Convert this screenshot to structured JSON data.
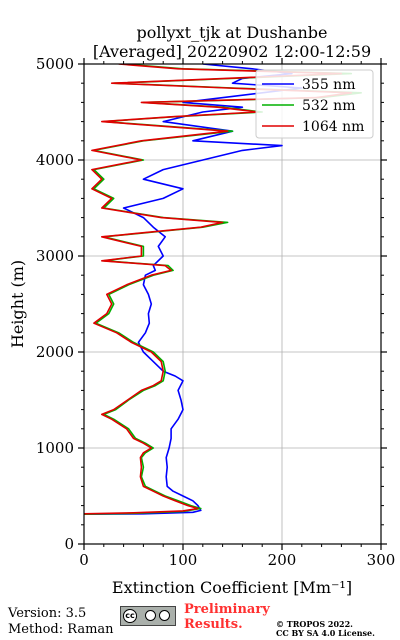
{
  "chart_data": {
    "type": "line",
    "title_line1": "pollyxt_tjk at Dushanbe",
    "title_line2": "[Averaged] 20220902 12:00-12:59",
    "xlabel": "Extinction Coefficient [Mm⁻¹]",
    "ylabel": "Height (m)",
    "xlim": [
      0,
      300
    ],
    "ylim": [
      0,
      5000
    ],
    "xticks": [
      "0",
      "100",
      "200",
      "300"
    ],
    "yticks": [
      "0",
      "1000",
      "2000",
      "3000",
      "4000",
      "5000"
    ],
    "grid": true,
    "legend_position": "top-right",
    "series": [
      {
        "name": "355 nm",
        "color": "#0000ff",
        "points": [
          [
            0,
            310
          ],
          [
            60,
            315
          ],
          [
            110,
            330
          ],
          [
            118,
            350
          ],
          [
            115,
            400
          ],
          [
            110,
            450
          ],
          [
            100,
            500
          ],
          [
            90,
            550
          ],
          [
            84,
            600
          ],
          [
            83,
            700
          ],
          [
            84,
            800
          ],
          [
            83,
            900
          ],
          [
            86,
            1000
          ],
          [
            88,
            1100
          ],
          [
            88,
            1200
          ],
          [
            95,
            1300
          ],
          [
            100,
            1400
          ],
          [
            98,
            1500
          ],
          [
            95,
            1600
          ],
          [
            100,
            1700
          ],
          [
            92,
            1750
          ],
          [
            80,
            1800
          ],
          [
            70,
            1900
          ],
          [
            60,
            2000
          ],
          [
            55,
            2100
          ],
          [
            62,
            2200
          ],
          [
            66,
            2300
          ],
          [
            65,
            2400
          ],
          [
            68,
            2500
          ],
          [
            65,
            2600
          ],
          [
            60,
            2700
          ],
          [
            62,
            2800
          ],
          [
            72,
            2850
          ],
          [
            70,
            2900
          ],
          [
            80,
            3000
          ],
          [
            75,
            3100
          ],
          [
            82,
            3200
          ],
          [
            70,
            3300
          ],
          [
            60,
            3400
          ],
          [
            40,
            3500
          ],
          [
            80,
            3600
          ],
          [
            100,
            3700
          ],
          [
            60,
            3800
          ],
          [
            80,
            3900
          ],
          [
            120,
            4000
          ],
          [
            160,
            4100
          ],
          [
            200,
            4150
          ],
          [
            110,
            4200
          ],
          [
            150,
            4300
          ],
          [
            80,
            4400
          ],
          [
            120,
            4500
          ],
          [
            160,
            4550
          ],
          [
            100,
            4600
          ],
          [
            180,
            4700
          ],
          [
            220,
            4750
          ],
          [
            150,
            4800
          ],
          [
            160,
            4850
          ],
          [
            210,
            4900
          ],
          [
            170,
            4950
          ],
          [
            120,
            5000
          ]
        ]
      },
      {
        "name": "532 nm",
        "color": "#00b000",
        "points": [
          [
            0,
            310
          ],
          [
            50,
            320
          ],
          [
            100,
            340
          ],
          [
            118,
            370
          ],
          [
            108,
            400
          ],
          [
            95,
            450
          ],
          [
            82,
            500
          ],
          [
            72,
            550
          ],
          [
            62,
            600
          ],
          [
            58,
            700
          ],
          [
            60,
            800
          ],
          [
            58,
            900
          ],
          [
            62,
            950
          ],
          [
            70,
            1000
          ],
          [
            62,
            1050
          ],
          [
            52,
            1100
          ],
          [
            45,
            1200
          ],
          [
            30,
            1300
          ],
          [
            20,
            1350
          ],
          [
            32,
            1400
          ],
          [
            45,
            1500
          ],
          [
            60,
            1600
          ],
          [
            72,
            1650
          ],
          [
            80,
            1700
          ],
          [
            82,
            1800
          ],
          [
            80,
            1900
          ],
          [
            70,
            2000
          ],
          [
            50,
            2100
          ],
          [
            35,
            2200
          ],
          [
            12,
            2300
          ],
          [
            25,
            2400
          ],
          [
            30,
            2500
          ],
          [
            25,
            2600
          ],
          [
            45,
            2700
          ],
          [
            70,
            2800
          ],
          [
            90,
            2850
          ],
          [
            85,
            2900
          ],
          [
            20,
            2950
          ],
          [
            60,
            3000
          ],
          [
            60,
            3100
          ],
          [
            20,
            3200
          ],
          [
            120,
            3300
          ],
          [
            145,
            3350
          ],
          [
            80,
            3400
          ],
          [
            20,
            3500
          ],
          [
            30,
            3600
          ],
          [
            10,
            3700
          ],
          [
            20,
            3800
          ],
          [
            10,
            3900
          ],
          [
            60,
            4000
          ],
          [
            10,
            4100
          ],
          [
            60,
            4200
          ],
          [
            150,
            4300
          ],
          [
            20,
            4400
          ],
          [
            90,
            4450
          ],
          [
            180,
            4500
          ],
          [
            140,
            4550
          ],
          [
            60,
            4600
          ],
          [
            240,
            4650
          ],
          [
            280,
            4700
          ],
          [
            150,
            4750
          ],
          [
            30,
            4800
          ],
          [
            270,
            4900
          ],
          [
            100,
            4950
          ],
          [
            40,
            5000
          ]
        ]
      },
      {
        "name": "1064 nm",
        "color": "#e00000",
        "points": [
          [
            0,
            315
          ],
          [
            50,
            325
          ],
          [
            100,
            345
          ],
          [
            115,
            370
          ],
          [
            105,
            400
          ],
          [
            92,
            450
          ],
          [
            80,
            500
          ],
          [
            70,
            550
          ],
          [
            60,
            600
          ],
          [
            57,
            700
          ],
          [
            58,
            800
          ],
          [
            57,
            900
          ],
          [
            60,
            950
          ],
          [
            68,
            1000
          ],
          [
            60,
            1050
          ],
          [
            50,
            1100
          ],
          [
            43,
            1200
          ],
          [
            28,
            1300
          ],
          [
            18,
            1350
          ],
          [
            30,
            1400
          ],
          [
            44,
            1500
          ],
          [
            58,
            1600
          ],
          [
            70,
            1650
          ],
          [
            78,
            1700
          ],
          [
            80,
            1800
          ],
          [
            78,
            1900
          ],
          [
            68,
            2000
          ],
          [
            48,
            2100
          ],
          [
            33,
            2200
          ],
          [
            10,
            2300
          ],
          [
            23,
            2400
          ],
          [
            28,
            2500
          ],
          [
            23,
            2600
          ],
          [
            43,
            2700
          ],
          [
            68,
            2800
          ],
          [
            88,
            2850
          ],
          [
            82,
            2900
          ],
          [
            18,
            2950
          ],
          [
            58,
            3000
          ],
          [
            58,
            3100
          ],
          [
            18,
            3200
          ],
          [
            118,
            3300
          ],
          [
            140,
            3350
          ],
          [
            78,
            3400
          ],
          [
            18,
            3500
          ],
          [
            28,
            3600
          ],
          [
            8,
            3700
          ],
          [
            18,
            3800
          ],
          [
            8,
            3900
          ],
          [
            58,
            4000
          ],
          [
            8,
            4100
          ],
          [
            58,
            4200
          ],
          [
            145,
            4300
          ],
          [
            18,
            4400
          ],
          [
            88,
            4450
          ],
          [
            175,
            4500
          ],
          [
            135,
            4550
          ],
          [
            58,
            4600
          ],
          [
            235,
            4650
          ],
          [
            270,
            4700
          ],
          [
            145,
            4750
          ],
          [
            28,
            4800
          ],
          [
            260,
            4900
          ],
          [
            95,
            4950
          ],
          [
            35,
            5000
          ]
        ]
      }
    ]
  },
  "footer": {
    "version": "Version: 3.5",
    "method": "Method: Raman",
    "preliminary_line1": "Preliminary",
    "preliminary_line2": "Results.",
    "copyright_line1": "© TROPOS 2022.",
    "copyright_line2": "CC BY SA 4.0 License.",
    "cc_text": "cc"
  }
}
